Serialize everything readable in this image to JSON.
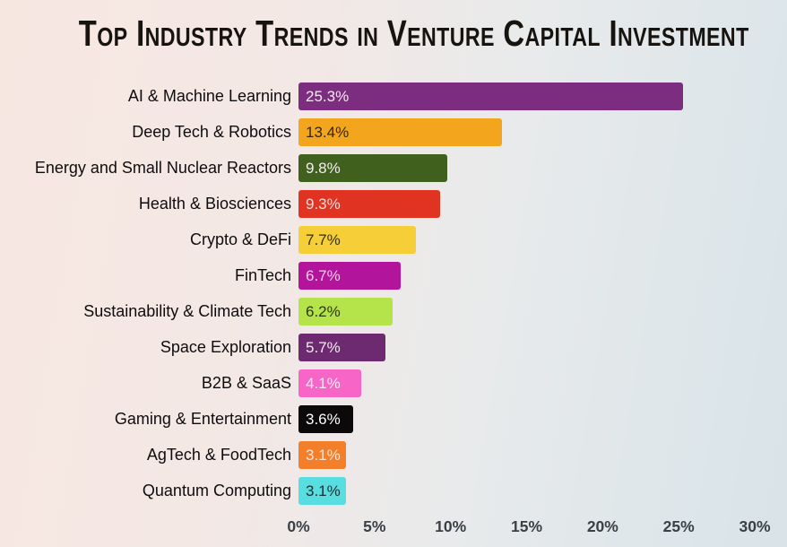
{
  "title": "Top Industry Trends in Venture Capital Investment",
  "background": {
    "left_color": "#f7e7e1",
    "right_color": "#d9e3e8"
  },
  "chart_data": {
    "type": "bar",
    "orientation": "horizontal",
    "title": "Top Industry Trends in Venture Capital Investment",
    "categories": [
      "AI & Machine Learning",
      "Deep Tech & Robotics",
      "Energy and Small Nuclear Reactors",
      "Health & Biosciences",
      "Crypto & DeFi",
      "FinTech",
      "Sustainability & Climate Tech",
      "Space Exploration",
      "B2B & SaaS",
      "Gaming & Entertainment",
      "AgTech & FoodTech",
      "Quantum Computing"
    ],
    "values": [
      25.3,
      13.4,
      9.8,
      9.3,
      7.7,
      6.7,
      6.2,
      5.7,
      4.1,
      3.6,
      3.1,
      3.1
    ],
    "value_labels": [
      "25.3%",
      "13.4%",
      "9.8%",
      "9.3%",
      "7.7%",
      "6.7%",
      "6.2%",
      "5.7%",
      "4.1%",
      "3.6%",
      "3.1%",
      "3.1%"
    ],
    "bar_colors": [
      "#7c2d7f",
      "#f3a51d",
      "#3f611d",
      "#e03322",
      "#f6ce38",
      "#b2149c",
      "#b4e34a",
      "#6e2a70",
      "#f766c6",
      "#0c090a",
      "#f37f2b",
      "#58dde0"
    ],
    "value_label_colors": [
      "#f7e9f2",
      "#352705",
      "#f3f0ec",
      "#f8d9d4",
      "#3a3107",
      "#f2c7e5",
      "#2e3a0b",
      "#f3e8f0",
      "#fdeaf6",
      "#ffffff",
      "#fbe3d2",
      "#1d3132"
    ],
    "xlabel": "",
    "ylabel": "",
    "xlim": [
      0,
      30
    ],
    "x_ticks": [
      "0%",
      "5%",
      "10%",
      "15%",
      "20%",
      "25%",
      "30%"
    ],
    "grid": false,
    "legend": false
  }
}
